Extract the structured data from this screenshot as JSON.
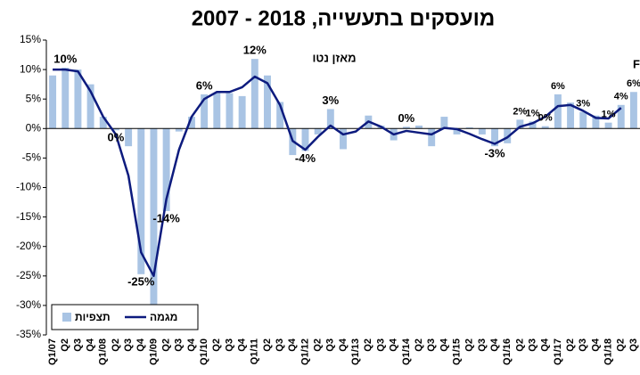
{
  "chart_data": {
    "type": "bar_line",
    "title": "מועסקים בתעשייה, 2018 - 2007",
    "subtitle": "מאזן נטו",
    "annotation": "F",
    "categories": [
      "Q1/07",
      "Q2",
      "Q3",
      "Q4",
      "Q1/08",
      "Q2",
      "Q3",
      "Q4",
      "Q1/09",
      "Q2",
      "Q3",
      "Q4",
      "Q1/10",
      "Q2",
      "Q3",
      "Q4",
      "Q1/11",
      "Q2",
      "Q3",
      "Q4",
      "Q1/12",
      "Q2",
      "Q3",
      "Q4",
      "Q1/13",
      "Q2",
      "Q3",
      "Q4",
      "Q1/14",
      "Q2",
      "Q3",
      "Q4",
      "Q1/15",
      "Q2",
      "Q3",
      "Q4",
      "Q1/16",
      "Q2",
      "Q3",
      "Q4",
      "Q1/17",
      "Q2",
      "Q3",
      "Q4",
      "Q1/18",
      "Q2",
      "Q3"
    ],
    "series": [
      {
        "name": "תצפיות",
        "type": "bar",
        "color": "#a9c4e4",
        "values": [
          9,
          10.3,
          10,
          7.5,
          2,
          -0.3,
          -3,
          -24.7,
          -30,
          -14,
          -0.5,
          2,
          5.8,
          6,
          6,
          5.5,
          11.8,
          9,
          4.5,
          -4.5,
          -3.8,
          -1,
          3.3,
          -3.5,
          0,
          2.2,
          0.5,
          -2,
          0.3,
          0.5,
          -3,
          2,
          -1,
          0.2,
          -1,
          -3,
          -2.5,
          1.5,
          1.2,
          0.4,
          5.8,
          4.4,
          2.8,
          2.2,
          1,
          4,
          6.2
        ],
        "value_labels": [
          null,
          "10%",
          null,
          null,
          null,
          "0%",
          null,
          "-25%",
          null,
          "-14%",
          null,
          null,
          "6%",
          null,
          null,
          null,
          "12%",
          null,
          null,
          null,
          "-4%",
          null,
          "3%",
          null,
          null,
          null,
          null,
          null,
          "0%",
          null,
          null,
          null,
          null,
          null,
          null,
          "-3%",
          null,
          "2%",
          "1%",
          "0%",
          "6%",
          null,
          "3%",
          null,
          "1%",
          "4%",
          "6%"
        ]
      },
      {
        "name": "מגמה",
        "type": "line",
        "color": "#0d1b7e",
        "values": [
          10,
          10,
          9.7,
          6.3,
          2,
          -1,
          -8,
          -21,
          -25,
          -12,
          -3.6,
          2,
          5,
          6.2,
          6.2,
          7,
          8.8,
          7.7,
          4,
          -2.1,
          -3.6,
          -1.4,
          0.5,
          -1,
          -0.5,
          1.2,
          0.3,
          -1,
          -0.4,
          -0.7,
          -1,
          0.1,
          -0.1,
          -0.9,
          -1.8,
          -2.6,
          -1.5,
          0.3,
          0.9,
          2,
          3.8,
          4,
          3,
          1.8,
          1.7,
          3.5,
          null
        ]
      }
    ],
    "ylim": [
      -35,
      15
    ],
    "yticks": [
      {
        "value": -35,
        "label": "-35%"
      },
      {
        "value": -30,
        "label": "-30%"
      },
      {
        "value": -25,
        "label": "-25%"
      },
      {
        "value": -20,
        "label": "-20%"
      },
      {
        "value": -15,
        "label": "-15%"
      },
      {
        "value": -10,
        "label": "-10%"
      },
      {
        "value": -5,
        "label": "-5%"
      },
      {
        "value": 0,
        "label": "0%"
      },
      {
        "value": 5,
        "label": "5%"
      },
      {
        "value": 10,
        "label": "10%"
      },
      {
        "value": 15,
        "label": "15%"
      }
    ],
    "legend": "bottom-left"
  }
}
